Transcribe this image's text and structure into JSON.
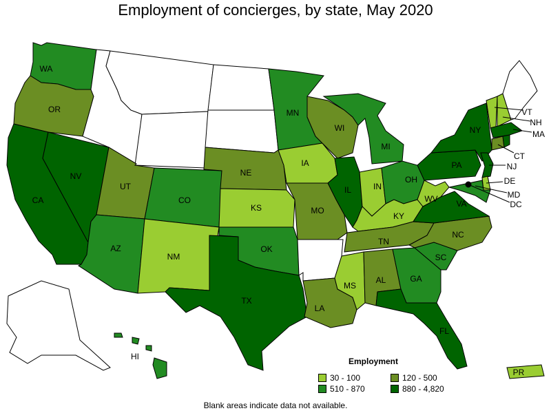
{
  "title": "Employment of concierges, by state, May 2020",
  "legend": {
    "title": "Employment",
    "items": [
      {
        "label": "30 - 100",
        "color": "#9acd32"
      },
      {
        "label": "120 - 500",
        "color": "#6b8e23"
      },
      {
        "label": "510 - 870",
        "color": "#228b22"
      },
      {
        "label": "880 - 4,820",
        "color": "#006400"
      }
    ]
  },
  "footnote": "Blank areas indicate data not available.",
  "states": {
    "WA": {
      "label": "WA",
      "bin": 2
    },
    "OR": {
      "label": "OR",
      "bin": 1
    },
    "CA": {
      "label": "CA",
      "bin": 3
    },
    "NV": {
      "label": "NV",
      "bin": 3
    },
    "ID": {
      "label": "",
      "bin": null
    },
    "MT": {
      "label": "",
      "bin": null
    },
    "WY": {
      "label": "",
      "bin": null
    },
    "UT": {
      "label": "UT",
      "bin": 1
    },
    "AZ": {
      "label": "AZ",
      "bin": 2
    },
    "CO": {
      "label": "CO",
      "bin": 2
    },
    "NM": {
      "label": "NM",
      "bin": 0
    },
    "ND": {
      "label": "",
      "bin": null
    },
    "SD": {
      "label": "",
      "bin": null
    },
    "NE": {
      "label": "NE",
      "bin": 1
    },
    "KS": {
      "label": "KS",
      "bin": 0
    },
    "OK": {
      "label": "OK",
      "bin": 2
    },
    "TX": {
      "label": "TX",
      "bin": 3
    },
    "MN": {
      "label": "MN",
      "bin": 2
    },
    "IA": {
      "label": "IA",
      "bin": 0
    },
    "MO": {
      "label": "MO",
      "bin": 1
    },
    "AR": {
      "label": "",
      "bin": null
    },
    "LA": {
      "label": "LA",
      "bin": 1
    },
    "WI": {
      "label": "WI",
      "bin": 1
    },
    "IL": {
      "label": "IL",
      "bin": 3
    },
    "MI": {
      "label": "MI",
      "bin": 2
    },
    "IN": {
      "label": "IN",
      "bin": 0
    },
    "OH": {
      "label": "OH",
      "bin": 2
    },
    "KY": {
      "label": "KY",
      "bin": 0
    },
    "TN": {
      "label": "TN",
      "bin": 1
    },
    "MS": {
      "label": "MS",
      "bin": 0
    },
    "AL": {
      "label": "AL",
      "bin": 1
    },
    "GA": {
      "label": "GA",
      "bin": 2
    },
    "FL": {
      "label": "FL",
      "bin": 3
    },
    "SC": {
      "label": "SC",
      "bin": 2
    },
    "NC": {
      "label": "NC",
      "bin": 1
    },
    "VA": {
      "label": "VA",
      "bin": 3
    },
    "WV": {
      "label": "WV",
      "bin": 0
    },
    "PA": {
      "label": "PA",
      "bin": 3
    },
    "NY": {
      "label": "NY",
      "bin": 3
    },
    "VT": {
      "label": "VT",
      "bin": 0
    },
    "NH": {
      "label": "NH",
      "bin": 0
    },
    "ME": {
      "label": "",
      "bin": null
    },
    "MA": {
      "label": "MA",
      "bin": 3
    },
    "CT": {
      "label": "CT",
      "bin": 1
    },
    "RI": {
      "label": "",
      "bin": 3
    },
    "NJ": {
      "label": "NJ",
      "bin": 3
    },
    "DE": {
      "label": "DE",
      "bin": 0
    },
    "MD": {
      "label": "MD",
      "bin": 2
    },
    "DC": {
      "label": "DC",
      "bin": 3
    },
    "AK": {
      "label": "",
      "bin": null
    },
    "HI": {
      "label": "HI",
      "bin": 2
    },
    "PR": {
      "label": "PR",
      "bin": 0
    }
  }
}
